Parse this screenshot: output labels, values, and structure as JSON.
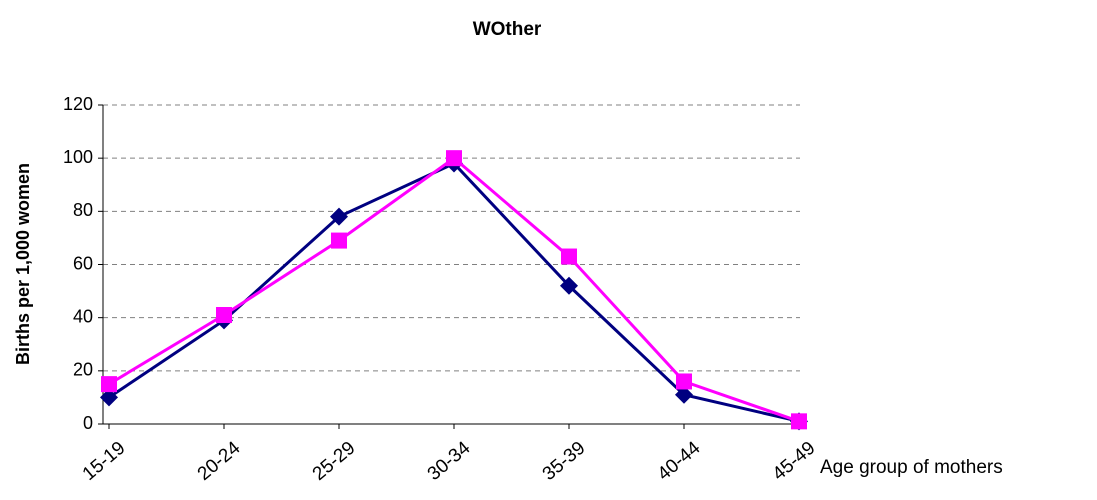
{
  "chart_data": {
    "type": "line",
    "title": "WOther",
    "x_label": "Age group of mothers",
    "y_label": "Births per 1,000 women",
    "categories": [
      "15-19",
      "20-24",
      "25-29",
      "30-34",
      "35-39",
      "40-44",
      "45-49"
    ],
    "series": [
      {
        "color": "#000080",
        "marker": "diamond",
        "values": [
          10,
          39,
          78,
          98,
          52,
          11,
          1
        ]
      },
      {
        "color": "#ff00ff",
        "marker": "square",
        "values": [
          15,
          41,
          69,
          100,
          63,
          16,
          1
        ]
      }
    ],
    "ylim": [
      0,
      120
    ],
    "yticks": [
      0,
      20,
      40,
      60,
      80,
      100,
      120
    ],
    "grid": true
  }
}
